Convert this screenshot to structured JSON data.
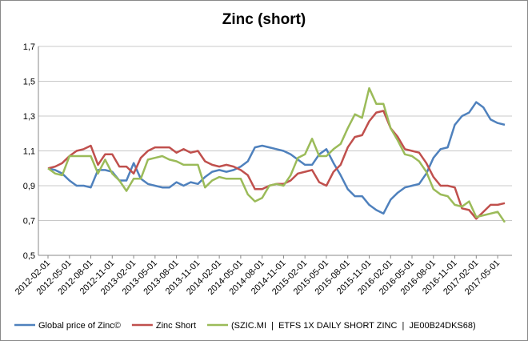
{
  "chart_data": {
    "type": "line",
    "title": "Zinc (short)",
    "categories": [
      "2012-02-01",
      null,
      null,
      "2012-05-01",
      null,
      null,
      "2012-08-01",
      null,
      null,
      "2012-11-01",
      null,
      null,
      "2013-02-01",
      null,
      null,
      "2013-05-01",
      null,
      null,
      "2013-08-01",
      null,
      null,
      "2013-11-01",
      null,
      null,
      "2014-02-01",
      null,
      null,
      "2014-05-01",
      null,
      null,
      "2014-08-01",
      null,
      null,
      "2014-11-01",
      null,
      null,
      "2015-02-01",
      null,
      null,
      "2015-05-01",
      null,
      null,
      "2015-08-01",
      null,
      null,
      "2015-11-01",
      null,
      null,
      "2016-02-01",
      null,
      null,
      "2016-05-01",
      null,
      null,
      "2016-08-01",
      null,
      null,
      "2016-11-01",
      null,
      null,
      "2017-02-01",
      null,
      null,
      "2017-05-01",
      null
    ],
    "series": [
      {
        "name": "Global price of Zinc©",
        "color": "#4f81bd",
        "values": [
          1.0,
          0.99,
          0.97,
          0.93,
          0.9,
          0.9,
          0.89,
          0.99,
          0.99,
          0.98,
          0.93,
          0.93,
          1.03,
          0.94,
          0.91,
          0.9,
          0.89,
          0.89,
          0.92,
          0.9,
          0.92,
          0.91,
          0.95,
          0.98,
          0.99,
          0.98,
          0.99,
          1.01,
          1.04,
          1.12,
          1.13,
          1.12,
          1.11,
          1.1,
          1.08,
          1.05,
          1.02,
          1.02,
          1.08,
          1.11,
          1.03,
          0.96,
          0.88,
          0.84,
          0.84,
          0.79,
          0.76,
          0.74,
          0.82,
          0.86,
          0.89,
          0.9,
          0.91,
          0.97,
          1.06,
          1.11,
          1.12,
          1.25,
          1.3,
          1.32,
          1.38,
          1.35,
          1.28,
          1.26,
          1.25
        ]
      },
      {
        "name": "Zinc Short",
        "color": "#c0504d",
        "values": [
          1.0,
          1.01,
          1.03,
          1.07,
          1.1,
          1.11,
          1.13,
          1.02,
          1.08,
          1.08,
          1.01,
          1.01,
          0.97,
          1.06,
          1.1,
          1.12,
          1.12,
          1.12,
          1.09,
          1.11,
          1.09,
          1.1,
          1.04,
          1.02,
          1.01,
          1.02,
          1.01,
          0.99,
          0.96,
          0.88,
          0.88,
          0.9,
          0.91,
          0.91,
          0.93,
          0.97,
          0.98,
          0.99,
          0.92,
          0.9,
          0.98,
          1.02,
          1.12,
          1.18,
          1.19,
          1.27,
          1.32,
          1.33,
          1.23,
          1.18,
          1.11,
          1.1,
          1.09,
          1.03,
          0.95,
          0.9,
          0.9,
          0.89,
          0.77,
          0.76,
          0.71,
          0.75,
          0.79,
          0.79,
          0.8
        ]
      },
      {
        "name": "(SZIC.MI  |  ETFS 1X DAILY SHORT ZINC  |  JE00B24DKS68)",
        "color": "#9bbb59",
        "values": [
          1.0,
          0.97,
          0.96,
          1.07,
          1.07,
          1.07,
          1.07,
          0.97,
          1.05,
          0.97,
          0.93,
          0.87,
          0.94,
          0.94,
          1.05,
          1.06,
          1.07,
          1.05,
          1.04,
          1.02,
          1.02,
          1.02,
          0.89,
          0.93,
          0.95,
          0.94,
          0.94,
          0.94,
          0.85,
          0.81,
          0.83,
          0.9,
          0.91,
          0.9,
          0.96,
          1.06,
          1.08,
          1.17,
          1.07,
          1.07,
          1.11,
          1.14,
          1.23,
          1.31,
          1.29,
          1.46,
          1.37,
          1.37,
          1.23,
          1.16,
          1.08,
          1.07,
          1.04,
          0.98,
          0.88,
          0.85,
          0.84,
          0.79,
          0.78,
          0.81,
          0.72,
          0.73,
          0.74,
          0.75,
          0.69
        ]
      }
    ],
    "ylim": [
      0.5,
      1.7
    ],
    "yticks": [
      {
        "value": 0.5,
        "label": "0,5"
      },
      {
        "value": 0.7,
        "label": "0,7"
      },
      {
        "value": 0.9,
        "label": "0,9"
      },
      {
        "value": 1.1,
        "label": "1,1"
      },
      {
        "value": 1.3,
        "label": "1,3"
      },
      {
        "value": 1.5,
        "label": "1,5"
      },
      {
        "value": 1.7,
        "label": "1,7"
      }
    ],
    "grid": true,
    "legend": "bottom"
  }
}
